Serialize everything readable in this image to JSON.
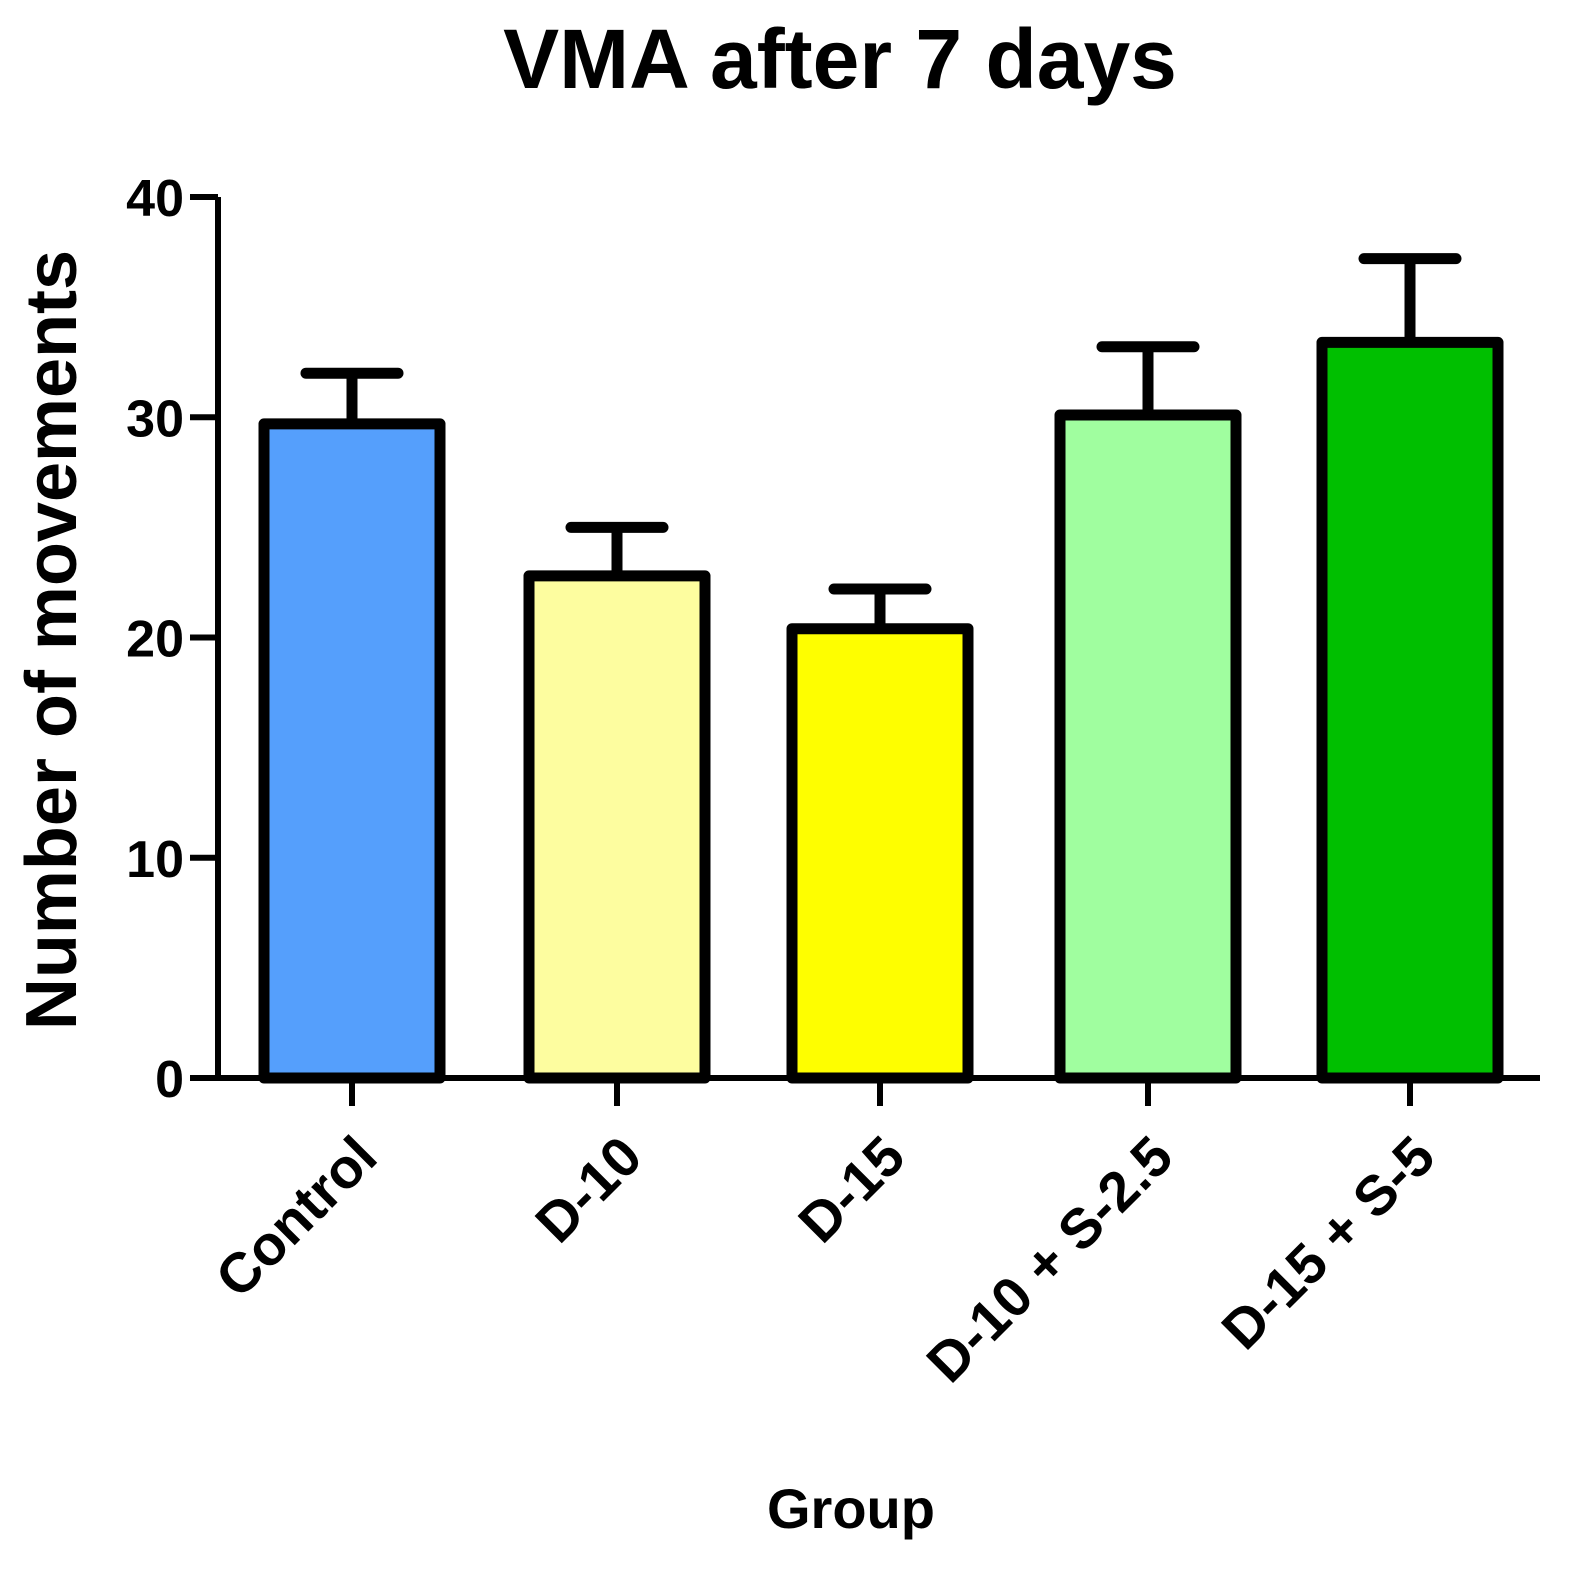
{
  "chart_data": {
    "type": "bar",
    "title": "VMA after 7 days",
    "xlabel": "Group",
    "ylabel": "Number of movements",
    "ylim": [
      0,
      40
    ],
    "yticks": [
      0,
      10,
      20,
      30,
      40
    ],
    "categories": [
      "Control",
      "D-10",
      "D-15",
      "D-10 + S-2.5",
      "D-15 + S-5"
    ],
    "values": [
      29.7,
      22.8,
      20.4,
      30.1,
      33.4
    ],
    "errors": [
      2.3,
      2.2,
      1.8,
      3.1,
      3.8
    ],
    "colors": [
      "#559ffc",
      "#fdfd9f",
      "#fefe00",
      "#a0fe9f",
      "#00bf00"
    ],
    "edge_color": "#000000"
  }
}
